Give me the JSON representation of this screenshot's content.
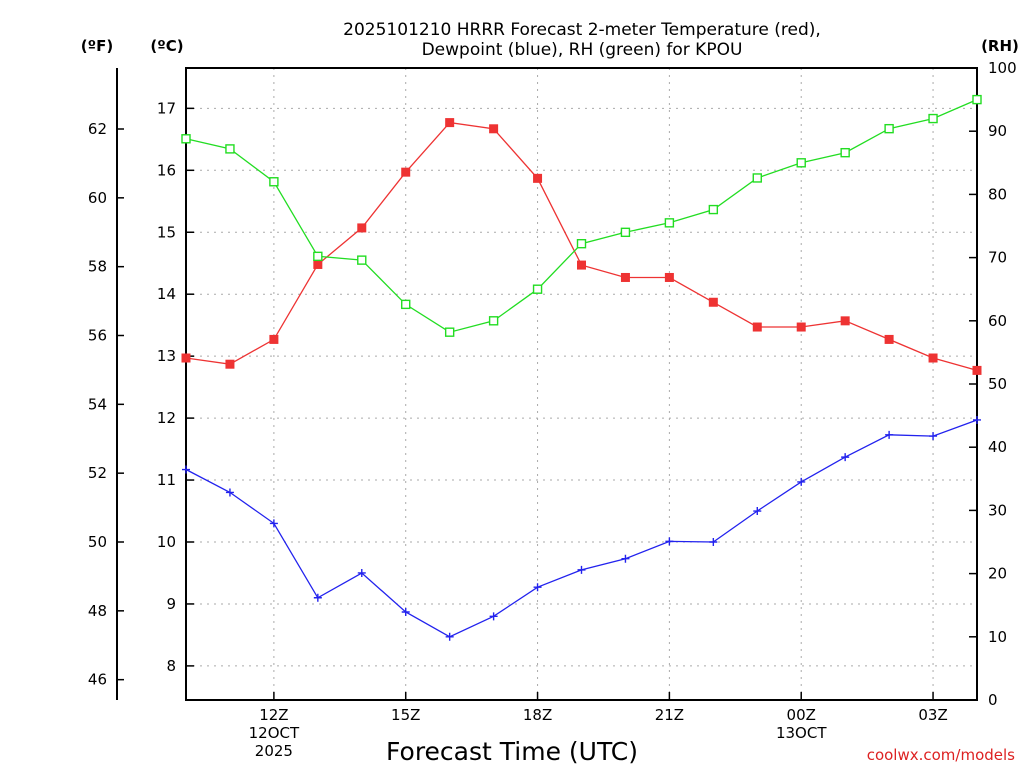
{
  "chart_data": {
    "type": "line",
    "title_lines": [
      "2025101210 HRRR Forecast 2-meter Temperature (red),",
      "Dewpoint (blue), RH (green) for KPOU"
    ],
    "xlabel": "Forecast Time (UTC)",
    "credit": "coolwx.com/models",
    "units": {
      "left_f": "(ºF)",
      "left_c": "(ºC)",
      "right_rh": "(RH)"
    },
    "x_hours": [
      10,
      11,
      12,
      13,
      14,
      15,
      16,
      17,
      18,
      19,
      20,
      21,
      22,
      23,
      24,
      25,
      26,
      27,
      28
    ],
    "x_ticks": [
      {
        "hour": 12,
        "lines": [
          "12Z",
          "12OCT",
          "2025"
        ]
      },
      {
        "hour": 15,
        "lines": [
          "15Z"
        ]
      },
      {
        "hour": 18,
        "lines": [
          "18Z"
        ]
      },
      {
        "hour": 21,
        "lines": [
          "21Z"
        ]
      },
      {
        "hour": 24,
        "lines": [
          "00Z",
          "13OCT"
        ]
      },
      {
        "hour": 27,
        "lines": [
          "03Z"
        ]
      }
    ],
    "xlim": [
      10,
      28
    ],
    "celsius_axis": {
      "ylim": [
        7.5,
        17.7
      ],
      "ticks": [
        8,
        9,
        10,
        11,
        12,
        13,
        14,
        15,
        16,
        17
      ]
    },
    "fahrenheit_ticks": [
      46,
      48,
      50,
      52,
      54,
      56,
      58,
      60,
      62
    ],
    "rh_axis": {
      "ylim": [
        0,
        100
      ],
      "ticks": [
        0,
        10,
        20,
        30,
        40,
        50,
        60,
        70,
        80,
        90,
        100
      ]
    },
    "series": [
      {
        "name": "2-meter Temperature",
        "unit": "C",
        "color": "#ee3333",
        "marker": "filled-square",
        "values": [
          12.97,
          12.87,
          13.27,
          14.48,
          15.07,
          15.97,
          16.77,
          16.67,
          15.87,
          14.47,
          14.27,
          14.27,
          13.87,
          13.47,
          13.47,
          13.57,
          13.27,
          12.97,
          12.77
        ]
      },
      {
        "name": "Dewpoint",
        "unit": "C",
        "color": "#2222ee",
        "marker": "plus",
        "values": [
          11.17,
          10.8,
          10.3,
          9.1,
          9.5,
          8.87,
          8.47,
          8.8,
          9.27,
          9.55,
          9.73,
          10.01,
          10.0,
          10.5,
          10.97,
          11.37,
          11.73,
          11.71,
          11.97
        ]
      },
      {
        "name": "RH",
        "unit": "%",
        "color": "#22dd22",
        "marker": "open-square",
        "values": [
          88.8,
          87.2,
          82.0,
          70.2,
          69.6,
          62.6,
          58.2,
          60.0,
          65.0,
          72.2,
          74.0,
          75.5,
          77.6,
          82.6,
          85.0,
          86.6,
          90.4,
          92.0,
          95.0
        ]
      }
    ]
  }
}
